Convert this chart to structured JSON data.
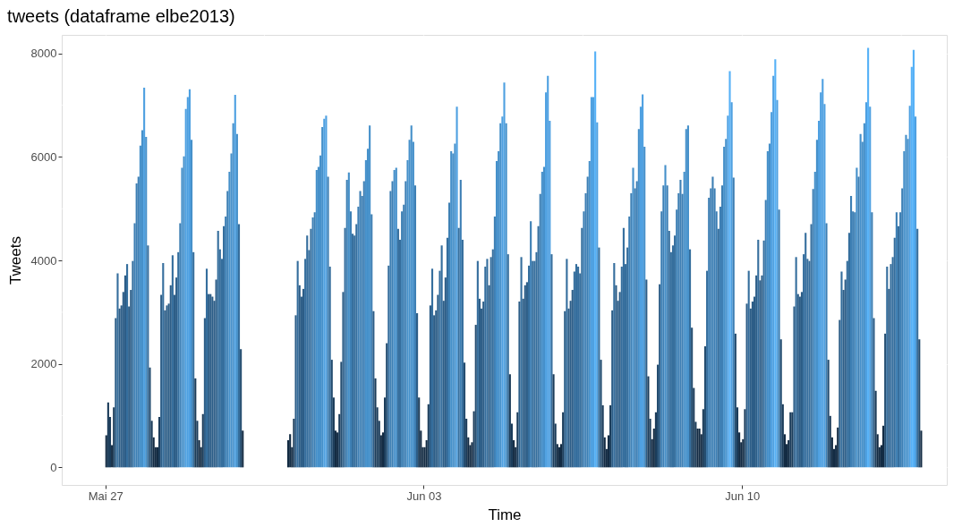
{
  "chart_data": {
    "type": "bar",
    "title": "tweets (dataframe elbe2013)",
    "xlabel": "Time",
    "ylabel": "Tweets",
    "series": [
      {
        "x": [
          "2013-05-27T00:00",
          "2013-05-27T01:00",
          "2013-05-27T02:00",
          "2013-05-27T03:00",
          "2013-05-27T04:00",
          "2013-05-27T05:00",
          "2013-05-27T06:00",
          "2013-05-27T07:00",
          "2013-05-27T08:00",
          "2013-05-27T09:00",
          "2013-05-27T10:00",
          "2013-05-27T11:00",
          "2013-05-27T12:00",
          "2013-05-27T13:00",
          "2013-05-27T14:00",
          "2013-05-27T15:00",
          "2013-05-27T16:00",
          "2013-05-27T17:00",
          "2013-05-27T18:00",
          "2013-05-27T19:00",
          "2013-05-27T20:00",
          "2013-05-27T21:00",
          "2013-05-27T22:00",
          "2013-05-27T23:00",
          "2013-05-28T00:00",
          "2013-05-28T01:00",
          "2013-05-28T02:00",
          "2013-05-28T03:00",
          "2013-05-28T04:00",
          "2013-05-28T05:00",
          "2013-05-28T06:00",
          "2013-05-28T07:00",
          "2013-05-28T08:00",
          "2013-05-28T09:00",
          "2013-05-28T10:00",
          "2013-05-28T11:00",
          "2013-05-28T12:00",
          "2013-05-28T13:00",
          "2013-05-28T14:00",
          "2013-05-28T15:00",
          "2013-05-28T16:00",
          "2013-05-28T17:00",
          "2013-05-28T18:00",
          "2013-05-28T19:00",
          "2013-05-28T20:00",
          "2013-05-28T21:00",
          "2013-05-28T22:00",
          "2013-05-28T23:00",
          "2013-05-29T00:00",
          "2013-05-29T01:00",
          "2013-05-29T02:00",
          "2013-05-29T03:00",
          "2013-05-29T04:00",
          "2013-05-29T05:00",
          "2013-05-29T06:00",
          "2013-05-29T07:00",
          "2013-05-29T08:00",
          "2013-05-29T09:00",
          "2013-05-29T10:00",
          "2013-05-29T11:00",
          "2013-05-29T12:00",
          "2013-05-29T13:00",
          "2013-05-29T14:00",
          "2013-05-29T15:00",
          "2013-05-29T16:00",
          "2013-05-29T17:00",
          "2013-05-29T18:00",
          "2013-05-29T19:00",
          "2013-05-29T20:00",
          "2013-05-29T21:00",
          "2013-05-29T22:00",
          "2013-05-29T23:00",
          "2013-05-30T00:00"
        ],
        "colors": [
          "#132b43",
          "#1b3c5a",
          "#1b3c5a",
          "#132b43",
          "#1b3c5a",
          "#2c5d87",
          "#356e9d",
          "#2c5d87",
          "#2c5d87",
          "#2c5d87",
          "#2c5d87",
          "#356e9d",
          "#2c5d87",
          "#2c5d87",
          "#356e9d",
          "#3d7fb4",
          "#3d7fb4",
          "#3d7fb4",
          "#4590ca",
          "#4590ca",
          "#4ea0e1",
          "#4590ca",
          "#356e9d",
          "#244d70",
          "#1b3c5a",
          "#132b43",
          "#132b43",
          "#132b43",
          "#1b3c5a",
          "#2c5d87",
          "#356e9d",
          "#2c5d87",
          "#2c5d87",
          "#2c5d87",
          "#2c5d87",
          "#356e9d",
          "#2c5d87",
          "#2c5d87",
          "#356e9d",
          "#3d7fb4",
          "#4590ca",
          "#4590ca",
          "#4ea0e1",
          "#4ea0e1",
          "#4ea0e1",
          "#4590ca",
          "#356e9d",
          "#1b3c5a",
          "#1b3c5a",
          "#132b43",
          "#132b43",
          "#1b3c5a",
          "#2c5d87",
          "#356e9d",
          "#2c5d87",
          "#2c5d87",
          "#2c5d87",
          "#2c5d87",
          "#2c5d87",
          "#356e9d",
          "#356e9d",
          "#356e9d",
          "#356e9d",
          "#3d7fb4",
          "#3d7fb4",
          "#4590ca",
          "#4590ca",
          "#4590ca",
          "#4ea0e1",
          "#4590ca",
          "#356e9d",
          "#244d70",
          "#132b43"
        ],
        "values": [
          620,
          1255,
          975,
          430,
          1160,
          2885,
          3750,
          3070,
          3130,
          3390,
          3710,
          3930,
          3110,
          3430,
          3990,
          4720,
          5490,
          5620,
          6220,
          6520,
          7340,
          6390,
          4290,
          1930,
          900,
          580,
          390,
          390,
          975,
          3335,
          3950,
          3035,
          3130,
          3165,
          3520,
          4100,
          3335,
          3670,
          4160,
          4720,
          5790,
          6010,
          6930,
          7160,
          7310,
          6330,
          4160,
          1720,
          900,
          525,
          390,
          1030,
          2885,
          3840,
          3350,
          3350,
          3300,
          3220,
          3630,
          4570,
          4215,
          4030,
          4665,
          4850,
          5340,
          5715,
          6070,
          6650,
          7200,
          6445,
          4700,
          2285,
          710
        ]
      },
      {
        "x": [
          "2013-05-31T00:00",
          "2013-05-31T01:00",
          "2013-05-31T02:00",
          "2013-05-31T03:00",
          "2013-05-31T04:00",
          "2013-05-31T05:00",
          "2013-05-31T06:00",
          "2013-05-31T07:00",
          "2013-05-31T08:00",
          "2013-05-31T09:00",
          "2013-05-31T10:00",
          "2013-05-31T11:00",
          "2013-05-31T12:00",
          "2013-05-31T13:00",
          "2013-05-31T14:00",
          "2013-05-31T15:00",
          "2013-05-31T16:00",
          "2013-05-31T17:00",
          "2013-05-31T18:00",
          "2013-05-31T19:00",
          "2013-05-31T20:00",
          "2013-05-31T21:00",
          "2013-05-31T22:00",
          "2013-05-31T23:00",
          "2013-06-01T00:00",
          "2013-06-01T01:00",
          "2013-06-01T02:00",
          "2013-06-01T03:00",
          "2013-06-01T04:00",
          "2013-06-01T05:00",
          "2013-06-01T06:00",
          "2013-06-01T07:00",
          "2013-06-01T08:00",
          "2013-06-01T09:00",
          "2013-06-01T10:00",
          "2013-06-01T11:00",
          "2013-06-01T12:00",
          "2013-06-01T13:00",
          "2013-06-01T14:00",
          "2013-06-01T15:00",
          "2013-06-01T16:00",
          "2013-06-01T17:00",
          "2013-06-01T18:00",
          "2013-06-01T19:00",
          "2013-06-01T20:00",
          "2013-06-01T21:00",
          "2013-06-01T22:00",
          "2013-06-01T23:00",
          "2013-06-02T00:00",
          "2013-06-02T01:00",
          "2013-06-02T02:00",
          "2013-06-02T03:00",
          "2013-06-02T04:00",
          "2013-06-02T05:00",
          "2013-06-02T06:00",
          "2013-06-02T07:00",
          "2013-06-02T08:00",
          "2013-06-02T09:00",
          "2013-06-02T10:00",
          "2013-06-02T11:00",
          "2013-06-02T12:00",
          "2013-06-02T13:00",
          "2013-06-02T14:00",
          "2013-06-02T15:00",
          "2013-06-02T16:00",
          "2013-06-02T17:00",
          "2013-06-02T18:00",
          "2013-06-02T19:00",
          "2013-06-02T20:00",
          "2013-06-02T21:00",
          "2013-06-02T22:00",
          "2013-06-02T23:00",
          "2013-06-03T00:00",
          "2013-06-03T01:00",
          "2013-06-03T02:00",
          "2013-06-03T03:00",
          "2013-06-03T04:00",
          "2013-06-03T05:00",
          "2013-06-03T06:00",
          "2013-06-03T07:00",
          "2013-06-03T08:00",
          "2013-06-03T09:00",
          "2013-06-03T10:00",
          "2013-06-03T11:00",
          "2013-06-03T12:00",
          "2013-06-03T13:00",
          "2013-06-03T14:00",
          "2013-06-03T15:00",
          "2013-06-03T16:00",
          "2013-06-03T17:00",
          "2013-06-03T18:00",
          "2013-06-03T19:00",
          "2013-06-03T20:00",
          "2013-06-03T21:00",
          "2013-06-03T22:00",
          "2013-06-03T23:00",
          "2013-06-04T00:00",
          "2013-06-04T01:00",
          "2013-06-04T02:00",
          "2013-06-04T03:00",
          "2013-06-04T04:00",
          "2013-06-04T05:00",
          "2013-06-04T06:00",
          "2013-06-04T07:00",
          "2013-06-04T08:00",
          "2013-06-04T09:00",
          "2013-06-04T10:00",
          "2013-06-04T11:00",
          "2013-06-04T12:00",
          "2013-06-04T13:00",
          "2013-06-04T14:00",
          "2013-06-04T15:00",
          "2013-06-04T16:00",
          "2013-06-04T17:00",
          "2013-06-04T18:00",
          "2013-06-04T19:00",
          "2013-06-04T20:00",
          "2013-06-04T21:00",
          "2013-06-04T22:00",
          "2013-06-04T23:00",
          "2013-06-05T00:00",
          "2013-06-05T01:00",
          "2013-06-05T02:00",
          "2013-06-05T03:00",
          "2013-06-05T04:00",
          "2013-06-05T05:00",
          "2013-06-05T06:00",
          "2013-06-05T07:00",
          "2013-06-05T08:00",
          "2013-06-05T09:00",
          "2013-06-05T10:00",
          "2013-06-05T11:00",
          "2013-06-05T12:00",
          "2013-06-05T13:00",
          "2013-06-05T14:00",
          "2013-06-05T15:00",
          "2013-06-05T16:00",
          "2013-06-05T17:00",
          "2013-06-05T18:00",
          "2013-06-05T19:00",
          "2013-06-05T20:00",
          "2013-06-05T21:00",
          "2013-06-05T22:00",
          "2013-06-05T23:00",
          "2013-06-06T00:00",
          "2013-06-06T01:00",
          "2013-06-06T02:00",
          "2013-06-06T03:00",
          "2013-06-06T04:00",
          "2013-06-06T05:00",
          "2013-06-06T06:00",
          "2013-06-06T07:00",
          "2013-06-06T08:00",
          "2013-06-06T09:00",
          "2013-06-06T10:00",
          "2013-06-06T11:00",
          "2013-06-06T12:00",
          "2013-06-06T13:00",
          "2013-06-06T14:00",
          "2013-06-06T15:00",
          "2013-06-06T16:00",
          "2013-06-06T17:00",
          "2013-06-06T18:00",
          "2013-06-06T19:00",
          "2013-06-06T20:00",
          "2013-06-06T21:00",
          "2013-06-06T22:00",
          "2013-06-06T23:00",
          "2013-06-07T00:00",
          "2013-06-07T01:00",
          "2013-06-07T02:00",
          "2013-06-07T03:00",
          "2013-06-07T04:00",
          "2013-06-07T05:00",
          "2013-06-07T06:00",
          "2013-06-07T07:00",
          "2013-06-07T08:00",
          "2013-06-07T09:00",
          "2013-06-07T10:00",
          "2013-06-07T11:00",
          "2013-06-07T12:00",
          "2013-06-07T13:00",
          "2013-06-07T14:00",
          "2013-06-07T15:00",
          "2013-06-07T16:00",
          "2013-06-07T17:00",
          "2013-06-07T18:00",
          "2013-06-07T19:00",
          "2013-06-07T20:00",
          "2013-06-07T21:00",
          "2013-06-07T22:00",
          "2013-06-07T23:00",
          "2013-06-08T00:00",
          "2013-06-08T01:00",
          "2013-06-08T02:00",
          "2013-06-08T03:00",
          "2013-06-08T04:00",
          "2013-06-08T05:00",
          "2013-06-08T06:00",
          "2013-06-08T07:00",
          "2013-06-08T08:00",
          "2013-06-08T09:00",
          "2013-06-08T10:00",
          "2013-06-08T11:00",
          "2013-06-08T12:00",
          "2013-06-08T13:00",
          "2013-06-08T14:00",
          "2013-06-08T15:00",
          "2013-06-08T16:00",
          "2013-06-08T17:00",
          "2013-06-08T18:00",
          "2013-06-08T19:00",
          "2013-06-08T20:00",
          "2013-06-08T21:00",
          "2013-06-08T22:00",
          "2013-06-08T23:00",
          "2013-06-09T00:00",
          "2013-06-09T01:00",
          "2013-06-09T02:00",
          "2013-06-09T03:00",
          "2013-06-09T04:00",
          "2013-06-09T05:00",
          "2013-06-09T06:00",
          "2013-06-09T07:00",
          "2013-06-09T08:00",
          "2013-06-09T09:00",
          "2013-06-09T10:00",
          "2013-06-09T11:00",
          "2013-06-09T12:00",
          "2013-06-09T13:00",
          "2013-06-09T14:00",
          "2013-06-09T15:00",
          "2013-06-09T16:00",
          "2013-06-09T17:00",
          "2013-06-09T18:00",
          "2013-06-09T19:00",
          "2013-06-09T20:00",
          "2013-06-09T21:00",
          "2013-06-09T22:00",
          "2013-06-09T23:00",
          "2013-06-10T00:00",
          "2013-06-10T01:00",
          "2013-06-10T02:00",
          "2013-06-10T03:00",
          "2013-06-10T04:00",
          "2013-06-10T05:00",
          "2013-06-10T06:00",
          "2013-06-10T07:00",
          "2013-06-10T08:00",
          "2013-06-10T09:00",
          "2013-06-10T10:00",
          "2013-06-10T11:00",
          "2013-06-10T12:00",
          "2013-06-10T13:00",
          "2013-06-10T14:00",
          "2013-06-10T15:00",
          "2013-06-10T16:00",
          "2013-06-10T17:00",
          "2013-06-10T18:00",
          "2013-06-10T19:00",
          "2013-06-10T20:00",
          "2013-06-10T21:00",
          "2013-06-10T22:00",
          "2013-06-10T23:00",
          "2013-06-11T00:00",
          "2013-06-11T01:00",
          "2013-06-11T02:00",
          "2013-06-11T03:00",
          "2013-06-11T04:00",
          "2013-06-11T05:00",
          "2013-06-11T06:00",
          "2013-06-11T07:00",
          "2013-06-11T08:00",
          "2013-06-11T09:00",
          "2013-06-11T10:00",
          "2013-06-11T11:00",
          "2013-06-11T12:00",
          "2013-06-11T13:00",
          "2013-06-11T14:00",
          "2013-06-11T15:00",
          "2013-06-11T16:00",
          "2013-06-11T17:00",
          "2013-06-11T18:00",
          "2013-06-11T19:00",
          "2013-06-11T20:00",
          "2013-06-11T21:00",
          "2013-06-11T22:00",
          "2013-06-11T23:00",
          "2013-06-12T00:00",
          "2013-06-12T01:00",
          "2013-06-12T02:00",
          "2013-06-12T03:00",
          "2013-06-12T04:00",
          "2013-06-12T05:00",
          "2013-06-12T06:00",
          "2013-06-12T07:00",
          "2013-06-12T08:00",
          "2013-06-12T09:00",
          "2013-06-12T10:00",
          "2013-06-12T11:00",
          "2013-06-12T12:00",
          "2013-06-12T13:00",
          "2013-06-12T14:00",
          "2013-06-12T15:00",
          "2013-06-12T16:00",
          "2013-06-12T17:00",
          "2013-06-12T18:00",
          "2013-06-12T19:00",
          "2013-06-12T20:00",
          "2013-06-12T21:00",
          "2013-06-12T22:00",
          "2013-06-12T23:00",
          "2013-06-13T00:00",
          "2013-06-13T01:00",
          "2013-06-13T02:00",
          "2013-06-13T03:00",
          "2013-06-13T04:00",
          "2013-06-13T05:00",
          "2013-06-13T06:00",
          "2013-06-13T07:00",
          "2013-06-13T08:00",
          "2013-06-13T09:00",
          "2013-06-13T10:00",
          "2013-06-13T11:00",
          "2013-06-13T12:00",
          "2013-06-13T13:00",
          "2013-06-13T14:00",
          "2013-06-13T15:00",
          "2013-06-13T16:00",
          "2013-06-13T17:00",
          "2013-06-13T18:00",
          "2013-06-13T19:00",
          "2013-06-13T20:00",
          "2013-06-13T21:00",
          "2013-06-13T22:00"
        ],
        "colors": [
          "#132b43",
          "#132b43",
          "#132b43",
          "#1b3c5a",
          "#2c5d87",
          "#356e9d",
          "#2c5d87",
          "#2c5d87",
          "#2c5d87",
          "#356e9d",
          "#356e9d",
          "#356e9d",
          "#356e9d",
          "#3d7fb4",
          "#3d7fb4",
          "#4590ca",
          "#4590ca",
          "#4590ca",
          "#4590ca",
          "#4ea0e1",
          "#4ea0e1",
          "#3d7fb4",
          "#356e9d",
          "#244d70",
          "#1b3c5a",
          "#132b43",
          "#132b43",
          "#1b3c5a",
          "#244d70",
          "#2c5d87",
          "#356e9d",
          "#3d7fb4",
          "#4590ca",
          "#3d7fb4",
          "#356e9d",
          "#356e9d",
          "#356e9d",
          "#3d7fb4",
          "#3d7fb4",
          "#3d7fb4",
          "#3d7fb4",
          "#4590ca",
          "#4590ca",
          "#4590ca",
          "#3d7fb4",
          "#2c5d87",
          "#1b3c5a",
          "#1b3c5a",
          "#1b3c5a",
          "#132b43",
          "#132b43",
          "#1b3c5a",
          "#244d70",
          "#356e9d",
          "#3d7fb4",
          "#3d7fb4",
          "#4590ca",
          "#4590ca",
          "#356e9d",
          "#356e9d",
          "#3d7fb4",
          "#3d7fb4",
          "#3d7fb4",
          "#4590ca",
          "#4590ca",
          "#4590ca",
          "#4590ca",
          "#3d7fb4",
          "#2c5d87",
          "#1b3c5a",
          "#132b43",
          "#132b43",
          "#132b43",
          "#132b43",
          "#1b3c5a",
          "#2c5d87",
          "#356e9d",
          "#2c5d87",
          "#2c5d87",
          "#2c5d87",
          "#356e9d",
          "#356e9d",
          "#2c5d87",
          "#2c5d87",
          "#356e9d",
          "#3d7fb4",
          "#4590ca",
          "#4590ca",
          "#4590ca",
          "#4ea0e1",
          "#356e9d",
          "#3d7fb4",
          "#356e9d",
          "#244d70",
          "#1b3c5a",
          "#132b43",
          "#132b43",
          "#132b43",
          "#1b3c5a",
          "#244d70",
          "#356e9d",
          "#2c5d87",
          "#2c5d87",
          "#2c5d87",
          "#356e9d",
          "#356e9d",
          "#2c5d87",
          "#356e9d",
          "#356e9d",
          "#3d7fb4",
          "#4590ca",
          "#4590ca",
          "#4590ca",
          "#4ea0e1",
          "#4ea0e1",
          "#4590ca",
          "#356e9d",
          "#1b3c5a",
          "#1b3c5a",
          "#132b43",
          "#132b43",
          "#1b3c5a",
          "#2c5d87",
          "#356e9d",
          "#2c5d87",
          "#2c5d87",
          "#2c5d87",
          "#356e9d",
          "#3d7fb4",
          "#356e9d",
          "#356e9d",
          "#356e9d",
          "#356e9d",
          "#3d7fb4",
          "#4590ca",
          "#4590ca",
          "#4ea0e1",
          "#4ea0e1",
          "#4ea0e1",
          "#356e9d",
          "#1b3c5a",
          "#1b3c5a",
          "#132b43",
          "#132b43",
          "#132b43",
          "#1b3c5a",
          "#2c5d87",
          "#356e9d",
          "#2c5d87",
          "#2c5d87",
          "#2c5d87",
          "#356e9d",
          "#356e9d",
          "#356e9d",
          "#356e9d",
          "#356e9d",
          "#3d7fb4",
          "#3d7fb4",
          "#3d7fb4",
          "#4590ca",
          "#4ea0e1",
          "#4ea0e1",
          "#56b1f7",
          "#4ea0e1",
          "#356e9d",
          "#244d70",
          "#1b3c5a",
          "#132b43",
          "#132b43",
          "#132b43",
          "#1b3c5a",
          "#2c5d87",
          "#356e9d",
          "#2c5d87",
          "#2c5d87",
          "#2c5d87",
          "#356e9d",
          "#356e9d",
          "#356e9d",
          "#356e9d",
          "#3d7fb4",
          "#3d7fb4",
          "#4590ca",
          "#3d7fb4",
          "#3d7fb4",
          "#4590ca",
          "#4ea0e1",
          "#4ea0e1",
          "#4590ca",
          "#2c5d87",
          "#1b3c5a",
          "#1b3c5a",
          "#132b43",
          "#132b43",
          "#1b3c5a",
          "#244d70",
          "#2c5d87",
          "#3d7fb4",
          "#3d7fb4",
          "#4590ca",
          "#3d7fb4",
          "#356e9d",
          "#356e9d",
          "#356e9d",
          "#356e9d",
          "#3d7fb4",
          "#3d7fb4",
          "#3d7fb4",
          "#3d7fb4",
          "#4590ca",
          "#4590ca",
          "#4590ca",
          "#356e9d",
          "#244d70",
          "#1b3c5a",
          "#1b3c5a",
          "#132b43",
          "#132b43",
          "#132b43",
          "#1b3c5a",
          "#244d70",
          "#356e9d",
          "#3d7fb4",
          "#3d7fb4",
          "#3d7fb4",
          "#3d7fb4",
          "#3d7fb4",
          "#356e9d",
          "#3d7fb4",
          "#3d7fb4",
          "#4590ca",
          "#4590ca",
          "#4ea0e1",
          "#56b1f7",
          "#4ea0e1",
          "#3d7fb4",
          "#244d70",
          "#1b3c5a",
          "#132b43",
          "#132b43",
          "#132b43",
          "#1b3c5a",
          "#2c5d87",
          "#356e9d",
          "#2c5d87",
          "#2c5d87",
          "#2c5d87",
          "#2c5d87",
          "#356e9d",
          "#2c5d87",
          "#2c5d87",
          "#356e9d",
          "#3d7fb4",
          "#4590ca",
          "#4590ca",
          "#4ea0e1",
          "#4ea0e1",
          "#56b1f7",
          "#4ea0e1",
          "#3d7fb4",
          "#244d70",
          "#1b3c5a",
          "#132b43",
          "#132b43",
          "#132b43",
          "#1b3c5a",
          "#1b3c5a",
          "#2c5d87",
          "#356e9d",
          "#2c5d87",
          "#2c5d87",
          "#2c5d87",
          "#356e9d",
          "#356e9d",
          "#356e9d",
          "#356e9d",
          "#356e9d",
          "#3d7fb4",
          "#4590ca",
          "#4590ca",
          "#4ea0e1",
          "#4ea0e1",
          "#4ea0e1",
          "#4ea0e1",
          "#3d7fb4",
          "#244d70",
          "#1b3c5a",
          "#132b43",
          "#132b43",
          "#132b43",
          "#132b43",
          "#2c5d87",
          "#356e9d",
          "#2c5d87",
          "#2c5d87",
          "#356e9d",
          "#356e9d",
          "#3d7fb4",
          "#3d7fb4",
          "#3d7fb4",
          "#4590ca",
          "#3d7fb4",
          "#4590ca",
          "#4590ca",
          "#4590ca",
          "#4ea0e1",
          "#56b1f7",
          "#4ea0e1",
          "#3d7fb4",
          "#2c5d87",
          "#1b3c5a",
          "#132b43",
          "#132b43",
          "#132b43",
          "#132b43",
          "#244d70",
          "#356e9d",
          "#2c5d87",
          "#356e9d",
          "#356e9d",
          "#356e9d",
          "#3d7fb4",
          "#356e9d",
          "#3d7fb4",
          "#3d7fb4",
          "#4590ca",
          "#4590ca",
          "#4590ca",
          "#4ea0e1",
          "#56b1f7",
          "#56b1f7",
          "#4ea0e1",
          "#356e9d",
          "#244d70",
          "#132b43"
        ],
        "values": [
          525,
          640,
          390,
          940,
          2940,
          3990,
          3520,
          3300,
          3450,
          4030,
          4480,
          4200,
          4610,
          4830,
          4930,
          5750,
          5810,
          6030,
          6580,
          6740,
          6800,
          5620,
          3880,
          2080,
          1350,
          710,
          675,
          1030,
          2040,
          3390,
          4630,
          5560,
          5700,
          4950,
          4515,
          4480,
          4700,
          5040,
          5340,
          5245,
          5530,
          5940,
          6160,
          6610,
          4890,
          3020,
          1720,
          1160,
          900,
          620,
          675,
          1350,
          2400,
          3900,
          5340,
          5530,
          5750,
          5790,
          4610,
          4400,
          4950,
          5080,
          5530,
          5940,
          6330,
          6610,
          6295,
          5450,
          2980,
          1350,
          710,
          390,
          390,
          525,
          1220,
          3130,
          3840,
          2940,
          3035,
          3335,
          3800,
          4290,
          3220,
          3670,
          4440,
          5115,
          6110,
          6070,
          6260,
          6970,
          4630,
          5560,
          4400,
          2025,
          940,
          580,
          430,
          485,
          1085,
          2755,
          3990,
          3260,
          3070,
          3205,
          3880,
          4030,
          3520,
          4065,
          4215,
          4850,
          5920,
          6110,
          6650,
          6780,
          7440,
          6650,
          4120,
          1800,
          845,
          525,
          390,
          1065,
          3205,
          4065,
          3260,
          3520,
          3580,
          3900,
          4760,
          3990,
          3990,
          4160,
          4665,
          5285,
          5715,
          5810,
          7250,
          7570,
          6700,
          4120,
          1800,
          845,
          450,
          390,
          450,
          1065,
          3020,
          4030,
          3070,
          3220,
          3430,
          3785,
          3930,
          3880,
          3750,
          4630,
          4950,
          5300,
          5620,
          5920,
          7160,
          7160,
          8040,
          6670,
          4250,
          2080,
          1200,
          580,
          355,
          620,
          1200,
          3035,
          3950,
          3520,
          3220,
          3390,
          3880,
          4630,
          3930,
          4250,
          4850,
          5300,
          5790,
          5395,
          5530,
          6540,
          6970,
          7210,
          6200,
          3630,
          1760,
          940,
          545,
          750,
          1065,
          1985,
          3540,
          4950,
          5450,
          5845,
          5450,
          4570,
          4160,
          4290,
          4480,
          4985,
          5300,
          5560,
          5285,
          5715,
          6540,
          6610,
          4215,
          2700,
          1535,
          880,
          750,
          750,
          640,
          1125,
          2340,
          3800,
          5210,
          5395,
          5620,
          5395,
          4950,
          4610,
          5040,
          5450,
          6200,
          6350,
          6800,
          7660,
          7060,
          5600,
          2585,
          1160,
          675,
          485,
          545,
          1125,
          3165,
          3800,
          3070,
          3205,
          3300,
          3710,
          4400,
          3615,
          3710,
          4385,
          5170,
          6110,
          6260,
          6870,
          7570,
          7890,
          7100,
          4985,
          2475,
          1220,
          640,
          450,
          525,
          1065,
          1065,
          3110,
          4065,
          3350,
          3300,
          3390,
          4120,
          4535,
          4030,
          3990,
          4700,
          5380,
          5715,
          6330,
          6700,
          7250,
          7510,
          7025,
          4720,
          2080,
          995,
          580,
          355,
          430,
          770,
          2850,
          3785,
          3430,
          3630,
          3990,
          4535,
          5245,
          4950,
          4930,
          5790,
          5620,
          6445,
          6295,
          6650,
          7060,
          8110,
          6970,
          4930,
          2885,
          1480,
          640,
          390,
          430,
          805,
          2585,
          3880,
          3450,
          3930,
          4065,
          4440,
          4930,
          4665,
          4930,
          5395,
          6110,
          6425,
          6350,
          6990,
          7740,
          8070,
          6780,
          4610,
          2475,
          710
        ]
      }
    ],
    "xlim": [
      "2013-05-26T01:00",
      "2013-06-14T12:00"
    ],
    "xticks": [
      {
        "value": "2013-05-27",
        "label": "Mai 27"
      },
      {
        "value": "2013-05-30T12:00",
        "label": null
      },
      {
        "value": "2013-06-03",
        "label": "Jun 03"
      },
      {
        "value": "2013-06-06T12:00",
        "label": null
      },
      {
        "value": "2013-06-10",
        "label": "Jun 10"
      },
      {
        "value": "2013-06-13T12:00",
        "label": null
      }
    ],
    "ylim": [
      -340,
      8360
    ],
    "yticks": [
      0,
      {
        "value": 1000,
        "label": null
      },
      2000,
      {
        "value": 3000,
        "label": null
      },
      4000,
      {
        "value": 5000,
        "label": null
      },
      6000,
      {
        "value": 7000,
        "label": null
      },
      8000
    ],
    "grid": true
  }
}
